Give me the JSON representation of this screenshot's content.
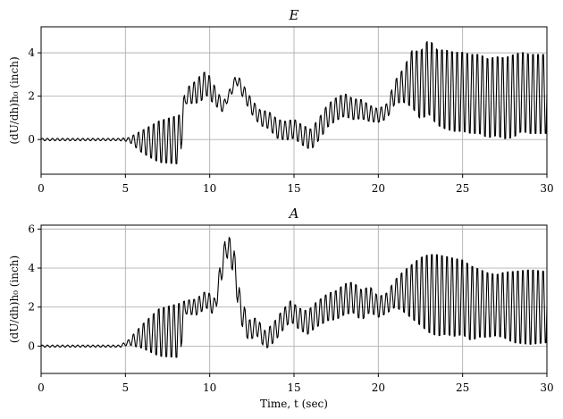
{
  "chart_data": [
    {
      "type": "line",
      "title": "E",
      "xlabel": "",
      "ylabel": "(dU/dh)h₀ (inch)",
      "xlim": [
        0,
        30
      ],
      "ylim": [
        -1.6,
        5.2
      ],
      "xticks": [
        0,
        5,
        10,
        15,
        20,
        25,
        30
      ],
      "xtick_labels": [
        "0",
        "5",
        "10",
        "15",
        "20",
        "25",
        "30"
      ],
      "yticks": [
        0,
        2,
        4
      ],
      "ytick_labels": [
        "0",
        "2",
        "4"
      ],
      "grid": true,
      "color": "#000000",
      "signal": {
        "sample_dt": 0.05,
        "period": 0.3,
        "center_knots": [
          [
            0,
            0
          ],
          [
            4.7,
            0
          ],
          [
            5.2,
            0
          ],
          [
            6,
            -0.1
          ],
          [
            7,
            -0.1
          ],
          [
            8.2,
            0
          ],
          [
            8.6,
            2.0
          ],
          [
            9.2,
            2.2
          ],
          [
            9.8,
            2.6
          ],
          [
            10.5,
            1.8
          ],
          [
            10.8,
            1.5
          ],
          [
            11.3,
            2.3
          ],
          [
            11.6,
            2.8
          ],
          [
            12,
            2.2
          ],
          [
            12.5,
            1.5
          ],
          [
            13,
            1.0
          ],
          [
            13.5,
            0.9
          ],
          [
            14,
            0.5
          ],
          [
            14.5,
            0.4
          ],
          [
            15,
            0.5
          ],
          [
            15.5,
            0.2
          ],
          [
            16,
            0
          ],
          [
            16.5,
            0.5
          ],
          [
            17,
            1.1
          ],
          [
            17.5,
            1.4
          ],
          [
            18,
            1.6
          ],
          [
            18.5,
            1.4
          ],
          [
            19,
            1.4
          ],
          [
            19.5,
            1.2
          ],
          [
            20,
            1.1
          ],
          [
            20.5,
            1.3
          ],
          [
            21,
            2.2
          ],
          [
            21.5,
            2.5
          ],
          [
            22,
            2.8
          ],
          [
            22.5,
            2.5
          ],
          [
            23,
            2.9
          ],
          [
            23.5,
            2.4
          ],
          [
            24,
            2.3
          ],
          [
            24.5,
            2.2
          ],
          [
            25,
            2.2
          ],
          [
            25.5,
            2.1
          ],
          [
            26,
            2.1
          ],
          [
            26.5,
            1.9
          ],
          [
            27,
            2.0
          ],
          [
            27.5,
            1.9
          ],
          [
            28,
            2.0
          ],
          [
            28.5,
            2.2
          ],
          [
            29,
            2.1
          ],
          [
            29.5,
            2.1
          ],
          [
            30,
            2.1
          ]
        ],
        "amplitude_knots": [
          [
            0,
            0.06
          ],
          [
            4.7,
            0.06
          ],
          [
            5.2,
            0.1
          ],
          [
            6,
            0.6
          ],
          [
            7,
            1.1
          ],
          [
            8.2,
            1.3
          ],
          [
            8.6,
            0.4
          ],
          [
            9.5,
            0.7
          ],
          [
            10,
            0.6
          ],
          [
            10.5,
            0.4
          ],
          [
            11,
            0.2
          ],
          [
            12,
            0.35
          ],
          [
            13,
            0.4
          ],
          [
            14,
            0.5
          ],
          [
            15,
            0.5
          ],
          [
            16,
            0.55
          ],
          [
            17,
            0.6
          ],
          [
            18,
            0.6
          ],
          [
            19,
            0.5
          ],
          [
            20,
            0.35
          ],
          [
            20.5,
            0.4
          ],
          [
            21,
            0.6
          ],
          [
            21.5,
            0.9
          ],
          [
            22,
            1.5
          ],
          [
            22.5,
            1.8
          ],
          [
            23,
            2.0
          ],
          [
            23.5,
            2.0
          ],
          [
            24,
            2.1
          ],
          [
            24.5,
            2.1
          ],
          [
            25,
            2.1
          ],
          [
            25.5,
            2.1
          ],
          [
            26,
            2.1
          ],
          [
            27,
            2.1
          ],
          [
            28,
            2.2
          ],
          [
            28.5,
            2.1
          ],
          [
            30,
            2.1
          ]
        ]
      }
    },
    {
      "type": "line",
      "title": "A",
      "xlabel": "Time, t (sec)",
      "ylabel": "(dU/dh)h₀ (inch)",
      "xlim": [
        0,
        30
      ],
      "ylim": [
        -1.4,
        6.2
      ],
      "xticks": [
        0,
        5,
        10,
        15,
        20,
        25,
        30
      ],
      "xtick_labels": [
        "0",
        "5",
        "10",
        "15",
        "20",
        "25",
        "30"
      ],
      "yticks": [
        0,
        2,
        4,
        6
      ],
      "ytick_labels": [
        "0",
        "2",
        "4",
        "6"
      ],
      "grid": true,
      "color": "#000000",
      "signal": {
        "sample_dt": 0.05,
        "period": 0.3,
        "center_knots": [
          [
            0,
            0
          ],
          [
            4.7,
            0
          ],
          [
            5.2,
            0.2
          ],
          [
            6,
            0.5
          ],
          [
            7,
            0.7
          ],
          [
            8.2,
            0.8
          ],
          [
            8.6,
            2.0
          ],
          [
            9.2,
            2.0
          ],
          [
            9.8,
            2.4
          ],
          [
            10.3,
            2.0
          ],
          [
            10.6,
            3.5
          ],
          [
            11,
            5.2
          ],
          [
            11.4,
            4.5
          ],
          [
            11.8,
            2.0
          ],
          [
            12.3,
            0.8
          ],
          [
            12.8,
            1.0
          ],
          [
            13.3,
            0.3
          ],
          [
            13.8,
            0.7
          ],
          [
            14.3,
            1.3
          ],
          [
            14.8,
            1.8
          ],
          [
            15.3,
            1.4
          ],
          [
            15.8,
            1.2
          ],
          [
            16.3,
            1.6
          ],
          [
            17,
            2.0
          ],
          [
            17.5,
            2.1
          ],
          [
            18,
            2.4
          ],
          [
            18.5,
            2.5
          ],
          [
            19,
            2.1
          ],
          [
            19.5,
            2.4
          ],
          [
            20,
            2.0
          ],
          [
            20.5,
            2.2
          ],
          [
            21,
            2.7
          ],
          [
            21.5,
            2.8
          ],
          [
            22,
            2.8
          ],
          [
            22.5,
            2.8
          ],
          [
            23,
            2.7
          ],
          [
            23.5,
            2.6
          ],
          [
            24,
            2.6
          ],
          [
            24.5,
            2.5
          ],
          [
            25,
            2.5
          ],
          [
            25.5,
            2.2
          ],
          [
            26,
            2.2
          ],
          [
            26.5,
            2.1
          ],
          [
            27,
            2.1
          ],
          [
            27.5,
            2.1
          ],
          [
            28,
            2.0
          ],
          [
            29,
            2.0
          ],
          [
            30,
            2.0
          ]
        ],
        "amplitude_knots": [
          [
            0,
            0.06
          ],
          [
            4.7,
            0.06
          ],
          [
            5.2,
            0.15
          ],
          [
            6,
            0.7
          ],
          [
            7,
            1.4
          ],
          [
            8.2,
            1.6
          ],
          [
            8.6,
            0.4
          ],
          [
            9.5,
            0.5
          ],
          [
            10.3,
            0.5
          ],
          [
            10.6,
            0.6
          ],
          [
            11,
            0.7
          ],
          [
            11.4,
            0.8
          ],
          [
            11.8,
            0.8
          ],
          [
            12.3,
            0.6
          ],
          [
            13,
            0.5
          ],
          [
            14,
            0.6
          ],
          [
            15,
            0.6
          ],
          [
            16,
            0.7
          ],
          [
            17,
            0.8
          ],
          [
            18,
            0.9
          ],
          [
            19,
            0.9
          ],
          [
            20,
            0.6
          ],
          [
            20.5,
            0.6
          ],
          [
            21,
            0.8
          ],
          [
            21.5,
            1.2
          ],
          [
            22,
            1.6
          ],
          [
            22.5,
            2.0
          ],
          [
            23,
            2.3
          ],
          [
            23.5,
            2.4
          ],
          [
            24,
            2.3
          ],
          [
            24.5,
            2.3
          ],
          [
            25,
            2.2
          ],
          [
            25.5,
            2.2
          ],
          [
            26,
            2.0
          ],
          [
            27,
            1.8
          ],
          [
            28,
            2.1
          ],
          [
            29,
            2.2
          ],
          [
            30,
            2.1
          ]
        ]
      }
    }
  ]
}
